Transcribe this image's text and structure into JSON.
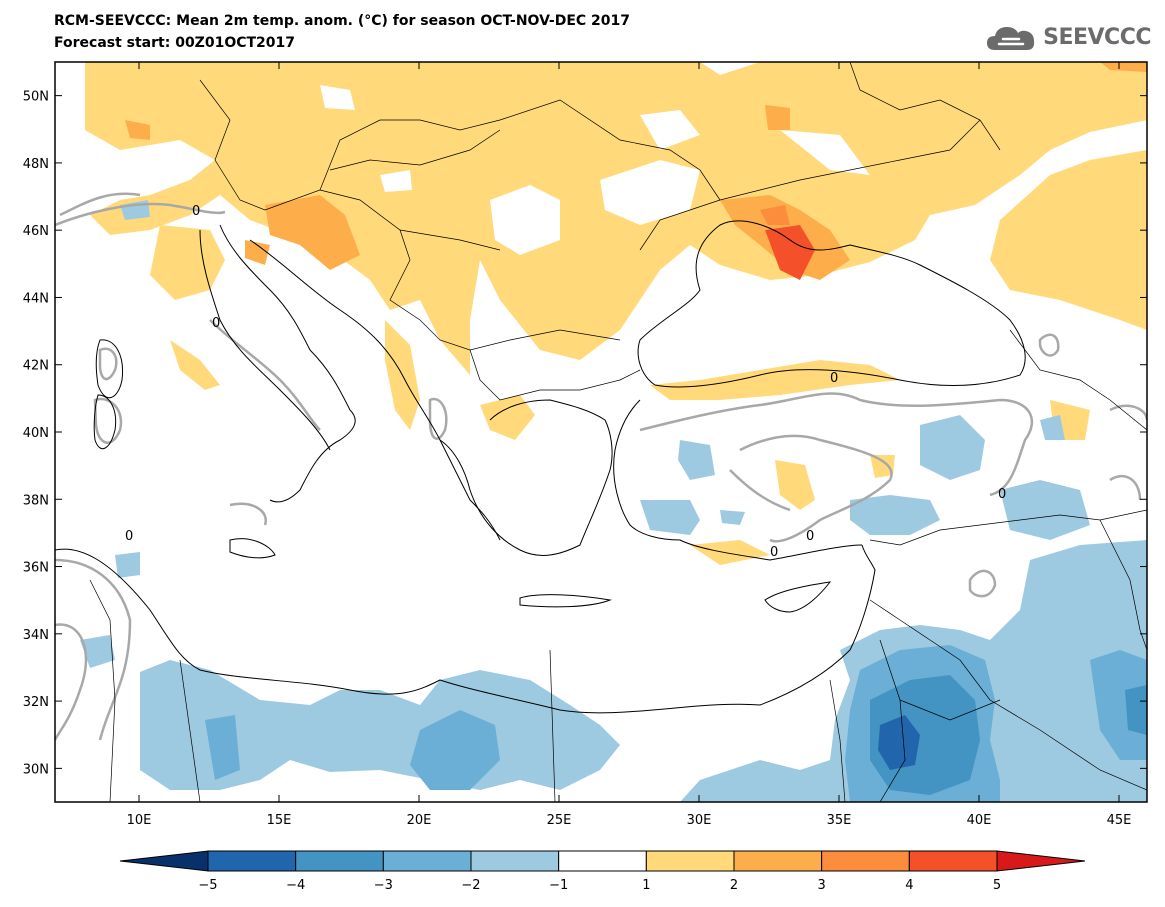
{
  "title_line1": "RCM-SEEVCCC: Mean 2m temp. anom. (°C) for season OCT-NOV-DEC 2017",
  "title_line2": "Forecast start: 00Z01OCT2017",
  "logo": {
    "text": "SEEVCCC",
    "icon": "cloud-logo-icon"
  },
  "map": {
    "lon_range": [
      7,
      46
    ],
    "lat_range": [
      29,
      51
    ],
    "lat_ticks": [
      {
        "value": 30,
        "label": "30N"
      },
      {
        "value": 32,
        "label": "32N"
      },
      {
        "value": 34,
        "label": "34N"
      },
      {
        "value": 36,
        "label": "36N"
      },
      {
        "value": 38,
        "label": "38N"
      },
      {
        "value": 40,
        "label": "40N"
      },
      {
        "value": 42,
        "label": "42N"
      },
      {
        "value": 44,
        "label": "44N"
      },
      {
        "value": 46,
        "label": "46N"
      },
      {
        "value": 48,
        "label": "48N"
      },
      {
        "value": 50,
        "label": "50N"
      }
    ],
    "lon_ticks": [
      {
        "value": 10,
        "label": "10E"
      },
      {
        "value": 15,
        "label": "15E"
      },
      {
        "value": 20,
        "label": "20E"
      },
      {
        "value": 25,
        "label": "25E"
      },
      {
        "value": 30,
        "label": "30E"
      },
      {
        "value": 35,
        "label": "35E"
      },
      {
        "value": 40,
        "label": "40E"
      },
      {
        "value": 45,
        "label": "45E"
      }
    ],
    "contour_label": "0"
  },
  "colorbar": {
    "labels": [
      "−5",
      "−4",
      "−3",
      "−2",
      "−1",
      "1",
      "2",
      "3",
      "4",
      "5"
    ],
    "colors": [
      "#08306b",
      "#2166ac",
      "#4393c3",
      "#6baed6",
      "#9ecae1",
      "#ffffff",
      "#ffd97a",
      "#fdae4a",
      "#fc8d3c",
      "#f4512b",
      "#d7191c"
    ]
  },
  "colors": {
    "warm1": "#ffd97a",
    "warm2": "#fdae4a",
    "warm3": "#fc8d3c",
    "warm4": "#f4512b",
    "cold1": "#9ecae1",
    "cold2": "#6baed6",
    "cold3": "#4393c3",
    "cold4": "#2166ac",
    "contour": "#a8a8a8"
  }
}
